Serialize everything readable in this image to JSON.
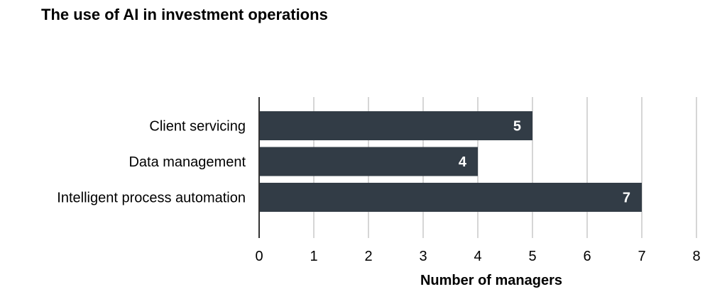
{
  "chart_data": {
    "type": "bar",
    "orientation": "horizontal",
    "title": "The use of AI in investment operations",
    "xlabel": "Number of managers",
    "ylabel": "",
    "categories": [
      "Client servicing",
      "Data management",
      "Intelligent process automation"
    ],
    "values": [
      5,
      4,
      7
    ],
    "data_labels": [
      "5",
      "4",
      "7"
    ],
    "xlim": [
      0,
      8
    ],
    "x_ticks": [
      "0",
      "1",
      "2",
      "3",
      "4",
      "5",
      "6",
      "7",
      "8"
    ],
    "grid": "vertical",
    "legend": "none",
    "colors": {
      "bar": "#323c46",
      "grid": "#c8c8c8",
      "axis": "#333333",
      "text": "#000000",
      "data_label": "#ffffff"
    }
  }
}
